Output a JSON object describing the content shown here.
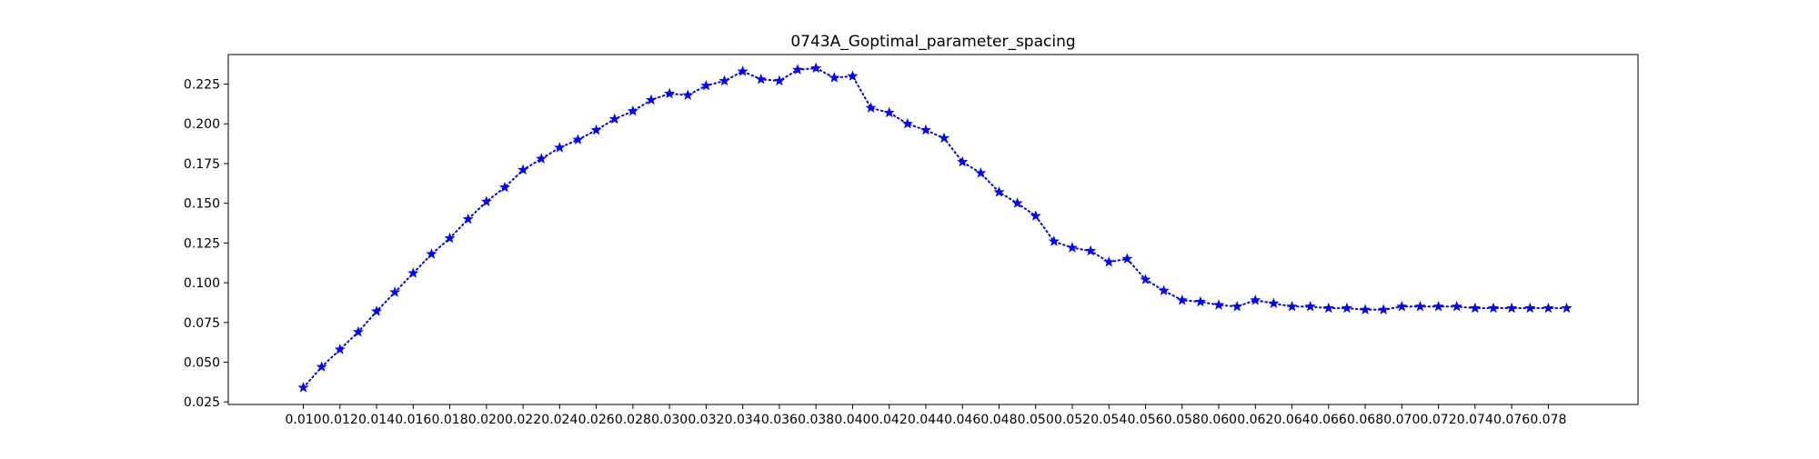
{
  "chart_data": {
    "type": "line",
    "title": "0743A_Goptimal_parameter_spacing",
    "xlabel": "",
    "ylabel": "",
    "xlim": [
      0.0059,
      0.0829
    ],
    "ylim": [
      0.0234,
      0.2436
    ],
    "x_ticks": [
      "0.010",
      "0.012",
      "0.014",
      "0.016",
      "0.018",
      "0.020",
      "0.022",
      "0.024",
      "0.026",
      "0.028",
      "0.030",
      "0.032",
      "0.034",
      "0.036",
      "0.038",
      "0.040",
      "0.042",
      "0.044",
      "0.046",
      "0.048",
      "0.050",
      "0.052",
      "0.054",
      "0.056",
      "0.058",
      "0.060",
      "0.062",
      "0.064",
      "0.066",
      "0.068",
      "0.070",
      "0.072",
      "0.074",
      "0.076",
      "0.078"
    ],
    "y_ticks": [
      "0.025",
      "0.050",
      "0.075",
      "0.100",
      "0.125",
      "0.150",
      "0.175",
      "0.200",
      "0.225"
    ],
    "grid": false,
    "legend": "none",
    "series": [
      {
        "color": "#0000ff",
        "line_style": "dotted",
        "marker": "star",
        "x": [
          0.01,
          0.011,
          0.012,
          0.013,
          0.014,
          0.015,
          0.016,
          0.017,
          0.018,
          0.019,
          0.02,
          0.021,
          0.022,
          0.023,
          0.024,
          0.025,
          0.026,
          0.027,
          0.028,
          0.029,
          0.03,
          0.031,
          0.032,
          0.033,
          0.034,
          0.035,
          0.036,
          0.037,
          0.038,
          0.039,
          0.04,
          0.041,
          0.042,
          0.043,
          0.044,
          0.045,
          0.046,
          0.047,
          0.048,
          0.049,
          0.05,
          0.051,
          0.052,
          0.053,
          0.054,
          0.055,
          0.056,
          0.057,
          0.058,
          0.059,
          0.06,
          0.061,
          0.062,
          0.063,
          0.064,
          0.065,
          0.066,
          0.067,
          0.068,
          0.069,
          0.07,
          0.071,
          0.072,
          0.073,
          0.074,
          0.075,
          0.076,
          0.077,
          0.078,
          0.079
        ],
        "y": [
          0.034,
          0.047,
          0.058,
          0.069,
          0.082,
          0.094,
          0.106,
          0.118,
          0.128,
          0.14,
          0.151,
          0.16,
          0.171,
          0.178,
          0.185,
          0.19,
          0.196,
          0.203,
          0.208,
          0.215,
          0.219,
          0.218,
          0.224,
          0.227,
          0.233,
          0.228,
          0.227,
          0.234,
          0.235,
          0.229,
          0.23,
          0.21,
          0.207,
          0.2,
          0.196,
          0.191,
          0.176,
          0.169,
          0.157,
          0.15,
          0.142,
          0.126,
          0.122,
          0.12,
          0.113,
          0.115,
          0.102,
          0.095,
          0.089,
          0.088,
          0.086,
          0.085,
          0.089,
          0.087,
          0.085,
          0.085,
          0.084,
          0.084,
          0.083,
          0.083,
          0.085,
          0.085,
          0.085,
          0.085,
          0.084,
          0.084,
          0.084,
          0.084,
          0.084,
          0.084
        ]
      }
    ]
  }
}
